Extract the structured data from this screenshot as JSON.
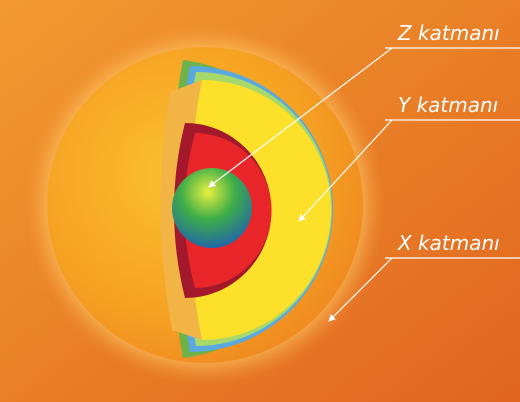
{
  "labels": [
    "Z katmanı",
    "Y katmanı",
    "X katmanı"
  ]
}
